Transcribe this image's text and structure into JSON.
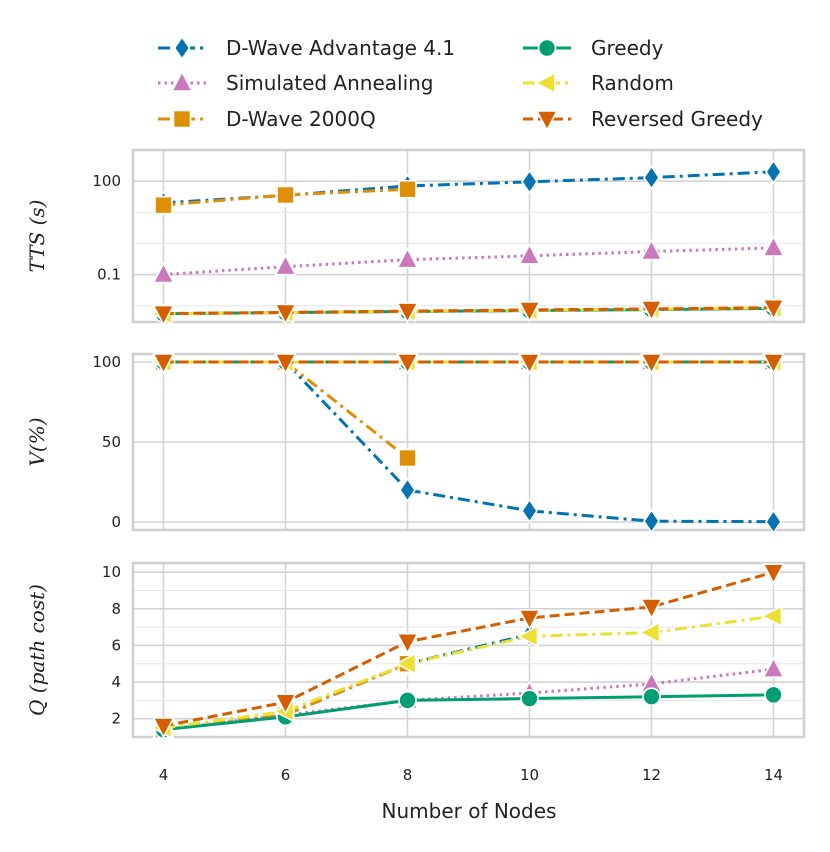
{
  "chart_data": {
    "type": "line",
    "xlabel": "Number of Nodes",
    "x": [
      4,
      6,
      8,
      10,
      12,
      14
    ],
    "legend": {
      "placement": "top",
      "entries": [
        "D-Wave Advantage 4.1",
        "Simulated Annealing",
        "D-Wave 2000Q",
        "Greedy",
        "Random",
        "Reversed Greedy"
      ]
    },
    "series_styles": {
      "D-Wave Advantage 4.1": {
        "color": "#0173b2",
        "marker": "diamond",
        "dash": "dashdot"
      },
      "Simulated Annealing": {
        "color": "#cc78bc",
        "marker": "triangle-up",
        "dash": "dotted"
      },
      "D-Wave 2000Q": {
        "color": "#de8f05",
        "marker": "square",
        "dash": "dashdot"
      },
      "Greedy": {
        "color": "#029e73",
        "marker": "circle",
        "dash": "solid"
      },
      "Random": {
        "color": "#ece133",
        "marker": "triangle-left",
        "dash": "dashdot"
      },
      "Reversed Greedy": {
        "color": "#d55e00",
        "marker": "triangle-down",
        "dash": "dashed"
      }
    },
    "panels": [
      {
        "name": "tts",
        "ylabel": "TTS (s)",
        "yscale": "log",
        "ylim": [
          0.003,
          1000
        ],
        "yticks": [
          0.1,
          100
        ],
        "ytick_labels": [
          "0.1",
          "100"
        ],
        "series": [
          {
            "name": "D-Wave Advantage 4.1",
            "values": [
              20,
              35,
              70,
              95,
              130,
              200
            ]
          },
          {
            "name": "Simulated Annealing",
            "values": [
              0.1,
              0.18,
              0.3,
              0.4,
              0.55,
              0.72
            ]
          },
          {
            "name": "D-Wave 2000Q",
            "values": [
              17,
              36,
              55,
              null,
              null,
              null
            ]
          },
          {
            "name": "Greedy",
            "values": [
              0.0055,
              0.006,
              0.0065,
              0.007,
              0.0075,
              0.0082
            ]
          },
          {
            "name": "Random",
            "values": [
              0.0055,
              0.006,
              0.0066,
              0.0072,
              0.0078,
              0.0085
            ]
          },
          {
            "name": "Reversed Greedy",
            "values": [
              0.0056,
              0.0061,
              0.0067,
              0.0073,
              0.0079,
              0.0086
            ]
          }
        ]
      },
      {
        "name": "validity",
        "ylabel": "V(%)",
        "yscale": "linear",
        "ylim": [
          -5,
          105
        ],
        "yticks": [
          0,
          50,
          100
        ],
        "ytick_labels": [
          "0",
          "50",
          "100"
        ],
        "series": [
          {
            "name": "D-Wave Advantage 4.1",
            "values": [
              100,
              100,
              20,
              7,
              0.5,
              0.2
            ]
          },
          {
            "name": "Simulated Annealing",
            "values": [
              100,
              100,
              100,
              100,
              100,
              100
            ]
          },
          {
            "name": "D-Wave 2000Q",
            "values": [
              100,
              100,
              40,
              null,
              null,
              null
            ]
          },
          {
            "name": "Greedy",
            "values": [
              100,
              100,
              100,
              100,
              100,
              100
            ]
          },
          {
            "name": "Random",
            "values": [
              100,
              100,
              100,
              100,
              100,
              100
            ]
          },
          {
            "name": "Reversed Greedy",
            "values": [
              100,
              100,
              100,
              100,
              100,
              100
            ]
          }
        ]
      },
      {
        "name": "quality",
        "ylabel": "Q (path cost)",
        "yscale": "linear",
        "ylim": [
          1,
          10.5
        ],
        "yticks": [
          2,
          4,
          6,
          8,
          10
        ],
        "ytick_labels": [
          "2",
          "4",
          "6",
          "8",
          "10"
        ],
        "series": [
          {
            "name": "D-Wave Advantage 4.1",
            "values": [
              1.4,
              2.2,
              5.0,
              6.6,
              null,
              null
            ]
          },
          {
            "name": "Simulated Annealing",
            "values": [
              1.4,
              2.2,
              3.0,
              3.4,
              3.9,
              4.7
            ]
          },
          {
            "name": "D-Wave 2000Q",
            "values": [
              1.4,
              2.2,
              5.0,
              null,
              null,
              null
            ]
          },
          {
            "name": "Greedy",
            "values": [
              1.4,
              2.1,
              3.0,
              3.1,
              3.2,
              3.3
            ]
          },
          {
            "name": "Random",
            "values": [
              1.5,
              2.4,
              5.0,
              6.5,
              6.7,
              7.6
            ]
          },
          {
            "name": "Reversed Greedy",
            "values": [
              1.6,
              2.9,
              6.2,
              7.5,
              8.1,
              10.0
            ]
          }
        ]
      }
    ]
  }
}
